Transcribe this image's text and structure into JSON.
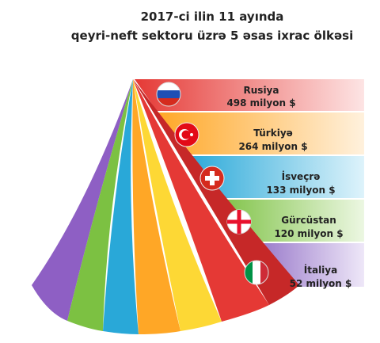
{
  "title": [
    "2017-ci ilin 11 ayında",
    "qeyri-neft sektoru üzrə 5 əsas ixrac ölkəsi"
  ],
  "items": [
    {
      "name": "Rusiya",
      "value": "498 milyon $"
    },
    {
      "name": "Türkiyə",
      "value": "264 milyon $"
    },
    {
      "name": "İsveçrə",
      "value": "133 milyon $"
    },
    {
      "name": "Gürcüstan",
      "value": "120 milyon $"
    },
    {
      "name": "İtaliya",
      "value": "52 milyon $"
    }
  ]
}
